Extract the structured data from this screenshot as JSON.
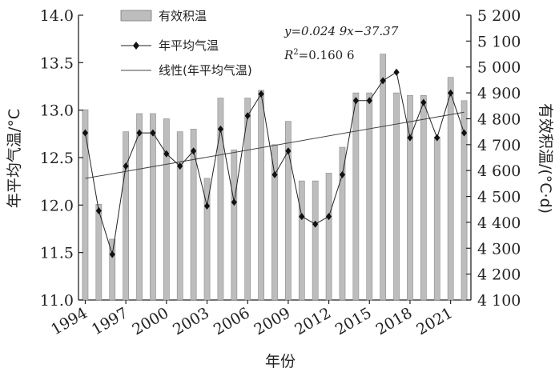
{
  "chart_data": {
    "type": "bar+line",
    "years": [
      1994,
      1995,
      1996,
      1997,
      1998,
      1999,
      2000,
      2001,
      2002,
      2003,
      2004,
      2005,
      2006,
      2007,
      2008,
      2009,
      2010,
      2011,
      2012,
      2013,
      2014,
      2015,
      2016,
      2017,
      2018,
      2019,
      2020,
      2021,
      2022
    ],
    "x_tick_labels": [
      "1994",
      "1997",
      "2000",
      "2003",
      "2006",
      "2009",
      "2012",
      "2015",
      "2018",
      "2021"
    ],
    "xlabel": "年份",
    "ylabel_left": "年平均气温/°C",
    "ylabel_right": "有效积温/(°C·d)",
    "ylim_left": [
      11.0,
      14.0
    ],
    "ylim_right": [
      4100,
      5200
    ],
    "y_ticks_left": [
      "11.0",
      "11.5",
      "12.0",
      "12.5",
      "13.0",
      "13.5",
      "14.0"
    ],
    "y_ticks_right": [
      "4 100",
      "4 200",
      "4 300",
      "4 400",
      "4 500",
      "4 600",
      "4 700",
      "4 800",
      "4 900",
      "5 000",
      "5 100",
      "5 200"
    ],
    "series": [
      {
        "name": "有效积温",
        "type": "bar",
        "axis": "right",
        "color": "#bdbdbd",
        "values": [
          4835,
          4470,
          4335,
          4750,
          4820,
          4820,
          4800,
          4750,
          4760,
          4570,
          4880,
          4680,
          4880,
          4910,
          4700,
          4790,
          4560,
          4560,
          4590,
          4690,
          4900,
          4900,
          5050,
          4900,
          4890,
          4890,
          4730,
          4960,
          4870
        ]
      },
      {
        "name": "年平均气温",
        "type": "line",
        "axis": "left",
        "color": "#222222",
        "marker": "diamond",
        "values": [
          12.76,
          11.94,
          11.48,
          12.41,
          12.76,
          12.76,
          12.54,
          12.41,
          12.57,
          11.99,
          12.8,
          12.03,
          12.94,
          13.17,
          12.32,
          12.57,
          11.88,
          11.8,
          11.88,
          12.32,
          13.1,
          13.1,
          13.31,
          13.4,
          12.71,
          13.08,
          12.71,
          13.18,
          12.76
        ]
      }
    ],
    "trend": {
      "name": "线性(年平均气温)",
      "slope": 0.0249,
      "intercept": -37.37,
      "color": "#444444"
    },
    "equation_text": "y=0.024 9x−37.37",
    "r2_label": "R",
    "r2_sup": "2",
    "r2_value": "=0.160 6",
    "legend": [
      "有效积温",
      "年平均气温",
      "线性(年平均气温)"
    ]
  }
}
